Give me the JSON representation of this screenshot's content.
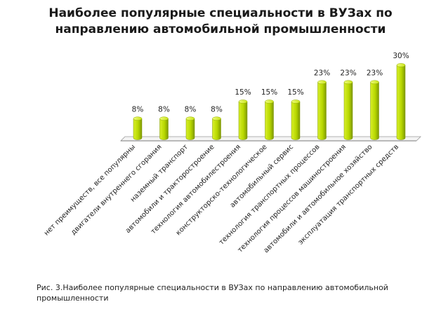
{
  "figure": {
    "title_line1": "Наиболее популярные специальности в ВУЗах по",
    "title_line2": "направлению автомобильной промышленности",
    "caption_line1": "Рис. 3.Наиболее популярные специальности в ВУЗах по направлению автомобильной",
    "caption_line2": "промышленности"
  },
  "chart_data": {
    "type": "bar",
    "title": "Наиболее популярные специальности в ВУЗах по направлению автомобильной промышленности",
    "categories": [
      "нет преимуществ, все популярны",
      "двигатели внутреннего сгорания",
      "наземный транспорт",
      "автомобили и тракторостроение",
      "технология автомобилестроения",
      "конструкторско-технологическое",
      "автомобильный сервис",
      "технология транспортных процессов",
      "технология процессов машиностроения",
      "автомобили и автомобильное хозяйство",
      "эксплуатация транспортных средств"
    ],
    "values": [
      8,
      8,
      8,
      8,
      15,
      15,
      15,
      23,
      23,
      23,
      30
    ],
    "labels": [
      "8%",
      "8%",
      "8%",
      "8%",
      "15%",
      "15%",
      "15%",
      "23%",
      "23%",
      "23%",
      "30%"
    ],
    "ylim": [
      0,
      30
    ],
    "grid": false,
    "legend": "none",
    "bar_color": "#b5d400"
  }
}
